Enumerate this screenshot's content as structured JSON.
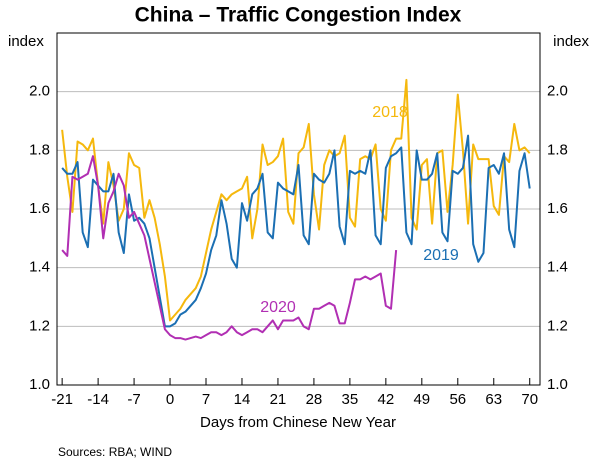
{
  "chart_data": {
    "type": "line",
    "title": "China – Traffic Congestion Index",
    "ylabel": "index",
    "y2label": "index",
    "xlabel": "Days from Chinese New Year",
    "source": "Sources:   RBA; WIND",
    "x": [
      -21,
      -20,
      -19,
      -18,
      -17,
      -16,
      -15,
      -14,
      -13,
      -12,
      -11,
      -10,
      -9,
      -8,
      -7,
      -6,
      -5,
      -4,
      -3,
      -2,
      -1,
      0,
      1,
      2,
      3,
      4,
      5,
      6,
      7,
      8,
      9,
      10,
      11,
      12,
      13,
      14,
      15,
      16,
      17,
      18,
      19,
      20,
      21,
      22,
      23,
      24,
      25,
      26,
      27,
      28,
      29,
      30,
      31,
      32,
      33,
      34,
      35,
      36,
      37,
      38,
      39,
      40,
      41,
      42,
      43,
      44,
      45,
      46,
      47,
      48,
      49,
      50,
      51,
      52,
      53,
      54,
      55,
      56,
      57,
      58,
      59,
      60,
      61,
      62,
      63,
      64,
      65,
      66,
      67,
      68,
      69,
      70
    ],
    "series": [
      {
        "name": "2018",
        "color": "#f5b80d",
        "values": [
          1.87,
          1.71,
          1.59,
          1.83,
          1.82,
          1.8,
          1.84,
          1.68,
          1.55,
          1.76,
          1.68,
          1.56,
          1.6,
          1.79,
          1.75,
          1.74,
          1.57,
          1.63,
          1.57,
          1.48,
          1.37,
          1.22,
          1.24,
          1.26,
          1.29,
          1.31,
          1.33,
          1.37,
          1.45,
          1.53,
          1.59,
          1.65,
          1.63,
          1.65,
          1.66,
          1.67,
          1.71,
          1.5,
          1.6,
          1.82,
          1.75,
          1.76,
          1.78,
          1.84,
          1.59,
          1.55,
          1.79,
          1.81,
          1.89,
          1.65,
          1.53,
          1.75,
          1.8,
          1.78,
          1.79,
          1.85,
          1.57,
          1.54,
          1.77,
          1.78,
          1.77,
          1.82,
          1.6,
          1.56,
          1.8,
          1.84,
          1.84,
          2.04,
          1.57,
          1.53,
          1.75,
          1.77,
          1.55,
          1.79,
          1.8,
          1.59,
          1.75,
          1.99,
          1.8,
          1.55,
          1.82,
          1.77,
          1.77,
          1.77,
          1.61,
          1.58,
          1.78,
          1.76,
          1.89,
          1.8,
          1.81,
          1.79
        ]
      },
      {
        "name": "2019",
        "color": "#1b6fb3",
        "values": [
          1.74,
          1.72,
          1.72,
          1.76,
          1.52,
          1.47,
          1.7,
          1.68,
          1.66,
          1.66,
          1.72,
          1.52,
          1.45,
          1.65,
          1.56,
          1.57,
          1.55,
          1.5,
          1.4,
          1.3,
          1.2,
          1.2,
          1.21,
          1.24,
          1.25,
          1.27,
          1.29,
          1.33,
          1.38,
          1.46,
          1.51,
          1.63,
          1.55,
          1.43,
          1.4,
          1.62,
          1.56,
          1.65,
          1.67,
          1.72,
          1.52,
          1.5,
          1.69,
          1.67,
          1.66,
          1.65,
          1.75,
          1.51,
          1.48,
          1.72,
          1.7,
          1.69,
          1.72,
          1.8,
          1.54,
          1.48,
          1.73,
          1.72,
          1.73,
          1.72,
          1.8,
          1.51,
          1.48,
          1.74,
          1.78,
          1.79,
          1.81,
          1.52,
          1.48,
          1.8,
          1.7,
          1.7,
          1.72,
          1.79,
          1.52,
          1.49,
          1.73,
          1.72,
          1.74,
          1.85,
          1.48,
          1.42,
          1.45,
          1.74,
          1.75,
          1.72,
          1.79,
          1.53,
          1.47,
          1.73,
          1.79,
          1.67
        ]
      },
      {
        "name": "2020",
        "color": "#b12fb3",
        "values": [
          1.46,
          1.44,
          1.71,
          1.7,
          1.71,
          1.72,
          1.78,
          1.68,
          1.5,
          1.62,
          1.66,
          1.72,
          1.68,
          1.57,
          1.59,
          1.55,
          1.51,
          1.43,
          1.35,
          1.27,
          1.19,
          1.17,
          1.16,
          1.16,
          1.155,
          1.16,
          1.165,
          1.16,
          1.17,
          1.18,
          1.18,
          1.17,
          1.18,
          1.2,
          1.18,
          1.17,
          1.18,
          1.19,
          1.19,
          1.18,
          1.2,
          1.22,
          1.19,
          1.22,
          1.22,
          1.22,
          1.23,
          1.2,
          1.19,
          1.26,
          1.26,
          1.27,
          1.28,
          1.27,
          1.21,
          1.21,
          1.28,
          1.36,
          1.36,
          1.37,
          1.36,
          1.37,
          1.38,
          1.27,
          1.26,
          1.46,
          null,
          null,
          null,
          null,
          null,
          null,
          null,
          null,
          null,
          null,
          null,
          null,
          null,
          null,
          null,
          null,
          null,
          null,
          null,
          null,
          null,
          null,
          null,
          null,
          null,
          null
        ]
      }
    ],
    "xlim": [
      -22,
      72
    ],
    "xticks": [
      -21,
      -14,
      -7,
      0,
      7,
      14,
      21,
      28,
      35,
      42,
      49,
      56,
      63,
      70
    ],
    "ylim": [
      1.0,
      2.2
    ],
    "yticks": [
      {
        "value": 1.0,
        "label": "1.0"
      },
      {
        "value": 1.2,
        "label": "1.2"
      },
      {
        "value": 1.4,
        "label": "1.4"
      },
      {
        "value": 1.6,
        "label": "1.6"
      },
      {
        "value": 1.8,
        "label": "1.8"
      },
      {
        "value": 2.0,
        "label": "2.0"
      }
    ],
    "y2lim": [
      1.0,
      2.2
    ],
    "y2ticks": [
      {
        "value": 1.0,
        "label": "1.0"
      },
      {
        "value": 1.2,
        "label": "1.2"
      },
      {
        "value": 1.4,
        "label": "1.4"
      },
      {
        "value": 1.6,
        "label": "1.6"
      },
      {
        "value": 1.8,
        "label": "1.8"
      },
      {
        "value": 2.0,
        "label": "2.0"
      }
    ],
    "grid": true
  }
}
